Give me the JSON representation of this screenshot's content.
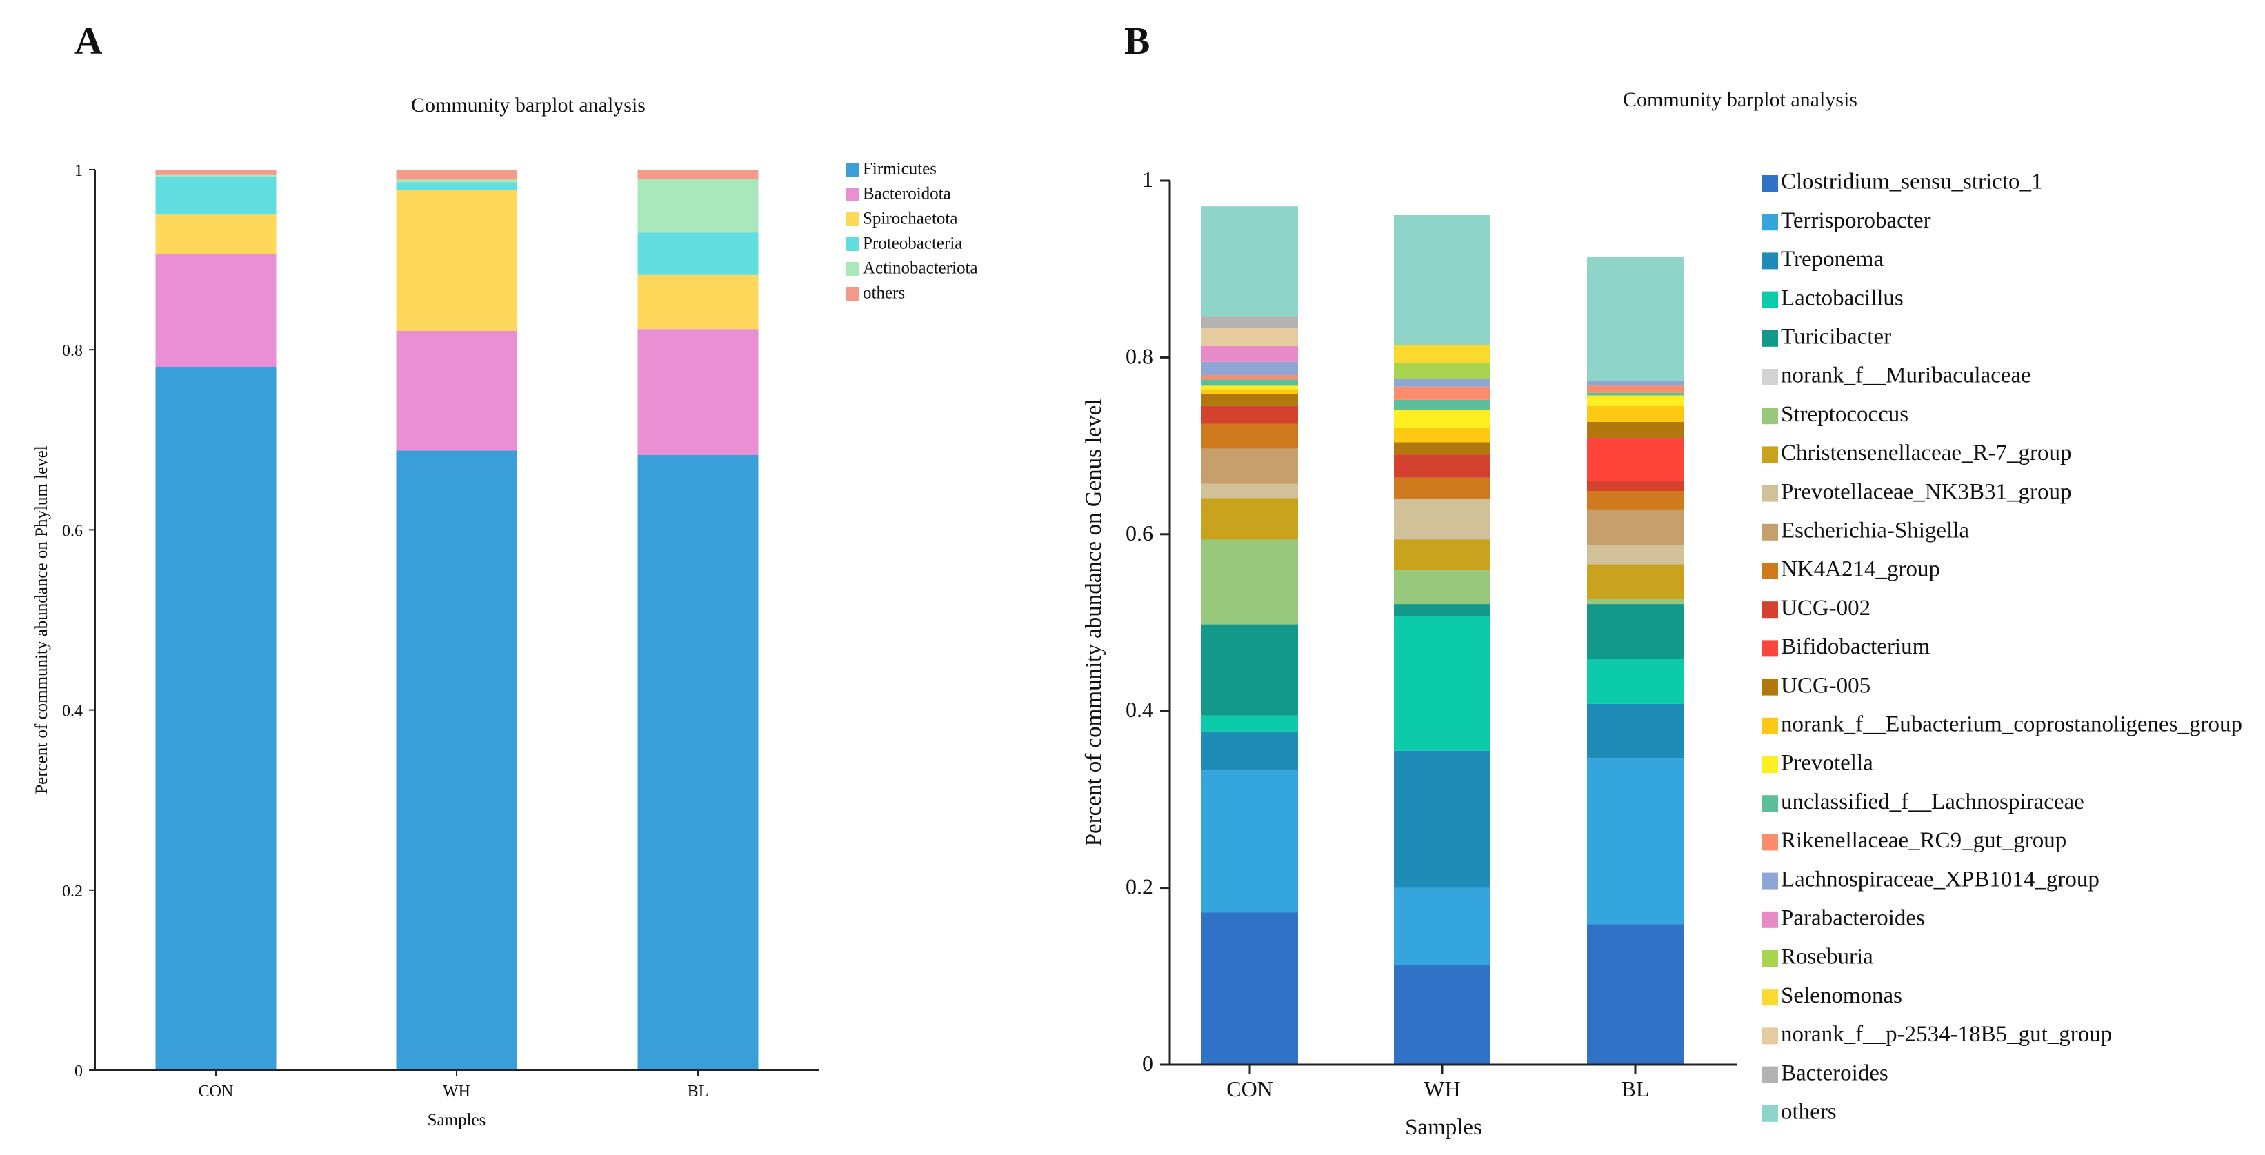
{
  "panels": {
    "A": {
      "letter": "A"
    },
    "B": {
      "letter": "B"
    }
  },
  "chart_data": [
    {
      "type": "bar",
      "stacked": true,
      "panel": "A",
      "title": "Community barplot analysis",
      "xlabel": "Samples",
      "ylabel": "Percent of community abundance on Phylum level",
      "ylim": [
        0,
        1
      ],
      "yticks": [
        {
          "value": 0,
          "label": "0"
        },
        {
          "value": 0.2,
          "label": "0.2"
        },
        {
          "value": 0.4,
          "label": "0.4"
        },
        {
          "value": 0.6,
          "label": "0.6"
        },
        {
          "value": 0.8,
          "label": "0.8"
        },
        {
          "value": 1,
          "label": "1"
        }
      ],
      "categories": [
        "CON",
        "WH",
        "BL"
      ],
      "legend_position": "right",
      "series": [
        {
          "name": "Firmicutes",
          "color": "#3a9fd8",
          "values": [
            0.781,
            0.688,
            0.683
          ]
        },
        {
          "name": "Bacteroidota",
          "color": "#e890d3",
          "values": [
            0.125,
            0.133,
            0.14
          ]
        },
        {
          "name": "Spirochaetota",
          "color": "#fdd85a",
          "values": [
            0.044,
            0.156,
            0.06
          ]
        },
        {
          "name": "Proteobacteria",
          "color": "#62dde0",
          "values": [
            0.042,
            0.009,
            0.047
          ]
        },
        {
          "name": "Actinobacteriota",
          "color": "#a8e8bb",
          "values": [
            0.002,
            0.003,
            0.06
          ]
        },
        {
          "name": "others",
          "color": "#f5998a",
          "values": [
            0.006,
            0.011,
            0.01
          ]
        }
      ]
    },
    {
      "type": "bar",
      "stacked": true,
      "panel": "B",
      "title": "Community barplot analysis",
      "xlabel": "Samples",
      "ylabel": "Percent of community abundance on Genus level",
      "ylim": [
        0,
        1
      ],
      "yticks": [
        {
          "value": 0,
          "label": "0"
        },
        {
          "value": 0.2,
          "label": "0.2"
        },
        {
          "value": 0.4,
          "label": "0.4"
        },
        {
          "value": 0.6,
          "label": "0.6"
        },
        {
          "value": 0.8,
          "label": "0.8"
        },
        {
          "value": 1,
          "label": "1"
        }
      ],
      "categories": [
        "CON",
        "WH",
        "BL"
      ],
      "legend_position": "right",
      "series": [
        {
          "name": "Clostridium_sensu_stricto_1",
          "color": "#2f72c6",
          "values": [
            0.172,
            0.113,
            0.159
          ]
        },
        {
          "name": "Terrisporobacter",
          "color": "#34a6dd",
          "values": [
            0.161,
            0.087,
            0.188
          ]
        },
        {
          "name": "Treponema",
          "color": "#1e8cb6",
          "values": [
            0.044,
            0.155,
            0.061
          ]
        },
        {
          "name": "Lactobacillus",
          "color": "#0ccbab",
          "values": [
            0.018,
            0.152,
            0.051
          ]
        },
        {
          "name": "Turicibacter",
          "color": "#13998a",
          "values": [
            0.103,
            0.014,
            0.062
          ]
        },
        {
          "name": "norank_f__Muribaculaceae",
          "color": "#d2d2d2",
          "values": [
            0,
            0,
            0
          ]
        },
        {
          "name": "Streptococcus",
          "color": "#97c87b",
          "values": [
            0.096,
            0.039,
            0.006
          ]
        },
        {
          "name": "Christensenellaceae_R-7_group",
          "color": "#c9a21e",
          "values": [
            0.047,
            0.034,
            0.039
          ]
        },
        {
          "name": "Prevotellaceae_NK3B31_group",
          "color": "#d0c198",
          "values": [
            0.016,
            0.046,
            0.022
          ]
        },
        {
          "name": "Escherichia-Shigella",
          "color": "#c79f6d",
          "values": [
            0.04,
            0,
            0.04
          ]
        },
        {
          "name": "NK4A214_group",
          "color": "#cf7a1d",
          "values": [
            0.028,
            0.024,
            0.021
          ]
        },
        {
          "name": "UCG-002",
          "color": "#d4422f",
          "values": [
            0.02,
            0.026,
            0.011
          ]
        },
        {
          "name": "Bifidobacterium",
          "color": "#ff443a",
          "values": [
            0,
            0,
            0.049
          ]
        },
        {
          "name": "UCG-005",
          "color": "#b2780e",
          "values": [
            0.014,
            0.014,
            0.018
          ]
        },
        {
          "name": "norank_f__Eubacterium_coprostanoligenes_group",
          "color": "#ffc913",
          "values": [
            0.005,
            0.016,
            0.018
          ]
        },
        {
          "name": "Prevotella",
          "color": "#ffee22",
          "values": [
            0.004,
            0.021,
            0.012
          ]
        },
        {
          "name": "unclassified_f__Lachnospiraceae",
          "color": "#5cbf9a",
          "values": [
            0.007,
            0.011,
            0.003
          ]
        },
        {
          "name": "Rikenellaceae_RC9_gut_group",
          "color": "#fb8c6c",
          "values": [
            0.005,
            0.015,
            0.008
          ]
        },
        {
          "name": "Lachnospiraceae_XPB1014_group",
          "color": "#8ea6d5",
          "values": [
            0.015,
            0.009,
            0.005
          ]
        },
        {
          "name": "Parabacteroides",
          "color": "#e78ac7",
          "values": [
            0.018,
            0,
            0
          ]
        },
        {
          "name": "Roseburia",
          "color": "#a9d450",
          "values": [
            0,
            0.018,
            0
          ]
        },
        {
          "name": "Selenomonas",
          "color": "#fbd92f",
          "values": [
            0,
            0.02,
            0
          ]
        },
        {
          "name": "norank_f__p-2534-18B5_gut_group",
          "color": "#e6cba0",
          "values": [
            0.02,
            0,
            0
          ]
        },
        {
          "name": "Bacteroides",
          "color": "#b3b3b3",
          "values": [
            0.014,
            0,
            0
          ]
        },
        {
          "name": "others",
          "color": "#8ed4c8",
          "values": [
            0.124,
            0.147,
            0.141
          ]
        }
      ]
    }
  ]
}
